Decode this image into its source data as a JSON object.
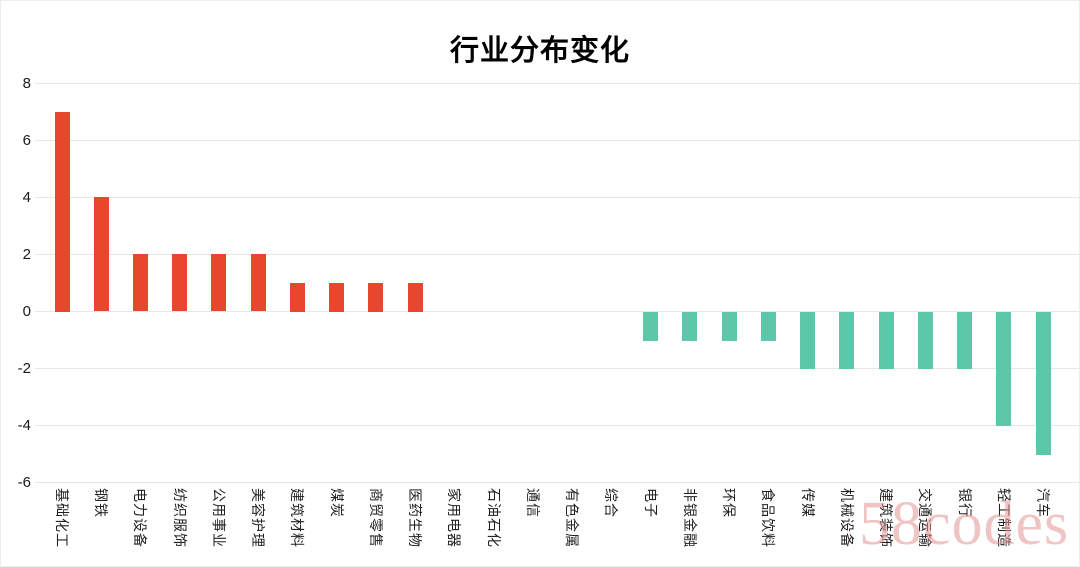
{
  "page": {
    "title": "行业分布变化",
    "watermark": "58codes"
  },
  "chart_data": {
    "type": "bar",
    "title": "行业分布变化",
    "categories": [
      "基础化工",
      "钢铁",
      "电力设备",
      "纺织服饰",
      "公用事业",
      "美容护理",
      "建筑材料",
      "煤炭",
      "商贸零售",
      "医药生物",
      "家用电器",
      "石油石化",
      "通信",
      "有色金属",
      "综合",
      "电子",
      "非银金融",
      "环保",
      "食品饮料",
      "传媒",
      "机械设备",
      "建筑装饰",
      "交通运输",
      "银行",
      "轻工制造",
      "汽车"
    ],
    "values": [
      7,
      4,
      2,
      2,
      2,
      2,
      1,
      1,
      1,
      1,
      0,
      0,
      0,
      0,
      0,
      -1,
      -1,
      -1,
      -1,
      -2,
      -2,
      -2,
      -2,
      -2,
      -4,
      -5
    ],
    "xlabel": "",
    "ylabel": "",
    "ylim": [
      -6,
      8
    ],
    "y_ticks": [
      8,
      6,
      4,
      2,
      0,
      -2,
      -4,
      -6
    ],
    "grid": true,
    "legend": "none",
    "positive_color": "#E8462D",
    "negative_color": "#5CC8A9",
    "x_label_rotation": 90
  }
}
